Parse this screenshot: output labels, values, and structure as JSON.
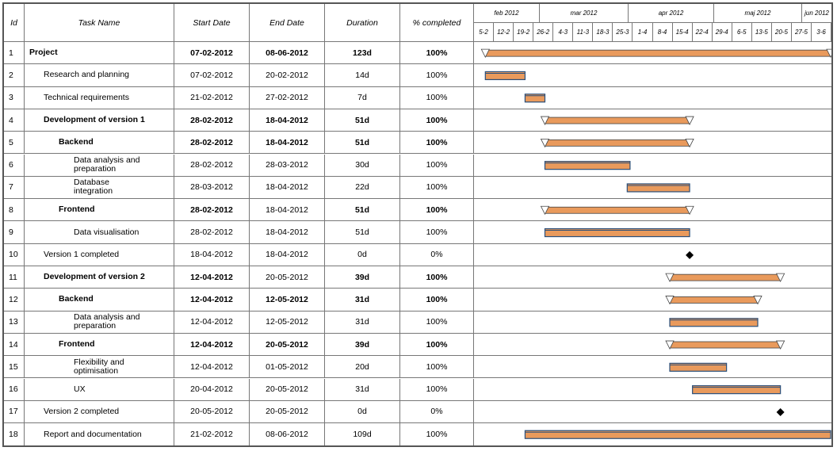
{
  "headers": {
    "id": "Id",
    "task": "Task Name",
    "start": "Start Date",
    "end": "End Date",
    "duration": "Duration",
    "completed": "% completed"
  },
  "months": [
    "feb 2012",
    "mar 2012",
    "apr 2012",
    "maj 2012",
    "jun 2012"
  ],
  "weeks": [
    "5-2",
    "12-2",
    "19-2",
    "26-2",
    "4-3",
    "11-3",
    "18-3",
    "25-3",
    "1-4",
    "8-4",
    "15-4",
    "22-4",
    "29-4",
    "6-5",
    "13-5",
    "20-5",
    "27-5",
    "3-6"
  ],
  "colors": {
    "bar_fill": "#e99a5c",
    "bar_border": "#2a4f7a",
    "milestone": "#000000",
    "grid": "#777777"
  },
  "tasks": [
    {
      "id": "1",
      "name": "Project",
      "start": "07-02-2012",
      "end": "08-06-2012",
      "duration": "123d",
      "completed": "100%",
      "level": 0,
      "bold": true,
      "kind": "summary",
      "bs": "2012-02-07",
      "be": "2012-06-08"
    },
    {
      "id": "2",
      "name": "Research and planning",
      "start": "07-02-2012",
      "end": "20-02-2012",
      "duration": "14d",
      "completed": "100%",
      "level": 1,
      "bold": false,
      "kind": "task",
      "bs": "2012-02-07",
      "be": "2012-02-20"
    },
    {
      "id": "3",
      "name": "Technical requirements",
      "start": "21-02-2012",
      "end": "27-02-2012",
      "duration": "7d",
      "completed": "100%",
      "level": 1,
      "bold": false,
      "kind": "task",
      "bs": "2012-02-21",
      "be": "2012-02-27"
    },
    {
      "id": "4",
      "name": "Development of version 1",
      "start": "28-02-2012",
      "end": "18-04-2012",
      "duration": "51d",
      "completed": "100%",
      "level": 1,
      "bold": true,
      "kind": "summary",
      "bs": "2012-02-28",
      "be": "2012-04-18"
    },
    {
      "id": "5",
      "name": "Backend",
      "start": "28-02-2012",
      "end": "18-04-2012",
      "duration": "51d",
      "completed": "100%",
      "level": 2,
      "bold": true,
      "kind": "summary",
      "bs": "2012-02-28",
      "be": "2012-04-18"
    },
    {
      "id": "6",
      "name": "Data analysis and preparation",
      "start": "28-02-2012",
      "end": "28-03-2012",
      "duration": "30d",
      "completed": "100%",
      "level": 3,
      "bold": false,
      "kind": "task",
      "bs": "2012-02-28",
      "be": "2012-03-28"
    },
    {
      "id": "7",
      "name": "Database integration",
      "start": "28-03-2012",
      "end": "18-04-2012",
      "duration": "22d",
      "completed": "100%",
      "level": 3,
      "bold": false,
      "kind": "task",
      "bs": "2012-03-28",
      "be": "2012-04-18"
    },
    {
      "id": "8",
      "name": "Frontend",
      "start": "28-02-2012",
      "end": "18-04-2012",
      "duration": "51d",
      "completed": "100%",
      "level": 2,
      "bold": true,
      "kind": "summary",
      "bs": "2012-02-28",
      "be": "2012-04-18"
    },
    {
      "id": "9",
      "name": "Data visualisation",
      "start": "28-02-2012",
      "end": "18-04-2012",
      "duration": "51d",
      "completed": "100%",
      "level": 3,
      "bold": false,
      "kind": "task",
      "bs": "2012-02-28",
      "be": "2012-04-18"
    },
    {
      "id": "10",
      "name": "Version 1 completed",
      "start": "18-04-2012",
      "end": "18-04-2012",
      "duration": "0d",
      "completed": "0%",
      "level": 1,
      "bold": false,
      "kind": "milestone",
      "bs": "2012-04-18",
      "be": "2012-04-18"
    },
    {
      "id": "11",
      "name": "Development of version 2",
      "start": "12-04-2012",
      "end": "20-05-2012",
      "duration": "39d",
      "completed": "100%",
      "level": 1,
      "bold": true,
      "kind": "summary",
      "bs": "2012-04-12",
      "be": "2012-05-20"
    },
    {
      "id": "12",
      "name": "Backend",
      "start": "12-04-2012",
      "end": "12-05-2012",
      "duration": "31d",
      "completed": "100%",
      "level": 2,
      "bold": true,
      "kind": "summary",
      "bs": "2012-04-12",
      "be": "2012-05-12"
    },
    {
      "id": "13",
      "name": "Data analysis and preparation",
      "start": "12-04-2012",
      "end": "12-05-2012",
      "duration": "31d",
      "completed": "100%",
      "level": 3,
      "bold": false,
      "kind": "task",
      "bs": "2012-04-12",
      "be": "2012-05-12"
    },
    {
      "id": "14",
      "name": "Frontend",
      "start": "12-04-2012",
      "end": "20-05-2012",
      "duration": "39d",
      "completed": "100%",
      "level": 2,
      "bold": true,
      "kind": "summary",
      "bs": "2012-04-12",
      "be": "2012-05-20"
    },
    {
      "id": "15",
      "name": "Flexibility and optimisation",
      "start": "12-04-2012",
      "end": "01-05-2012",
      "duration": "20d",
      "completed": "100%",
      "level": 3,
      "bold": false,
      "kind": "task",
      "bs": "2012-04-12",
      "be": "2012-05-01"
    },
    {
      "id": "16",
      "name": "UX",
      "start": "20-04-2012",
      "end": "20-05-2012",
      "duration": "31d",
      "completed": "100%",
      "level": 3,
      "bold": false,
      "kind": "task",
      "bs": "2012-04-20",
      "be": "2012-05-20"
    },
    {
      "id": "17",
      "name": "Version 2 completed",
      "start": "20-05-2012",
      "end": "20-05-2012",
      "duration": "0d",
      "completed": "0%",
      "level": 1,
      "bold": false,
      "kind": "milestone",
      "bs": "2012-05-20",
      "be": "2012-05-20"
    },
    {
      "id": "18",
      "name": "Report and documentation",
      "start": "21-02-2012",
      "end": "08-06-2012",
      "duration": "109d",
      "completed": "100%",
      "level": 1,
      "bold": false,
      "kind": "task",
      "bs": "2012-02-21",
      "be": "2012-06-08"
    }
  ]
}
